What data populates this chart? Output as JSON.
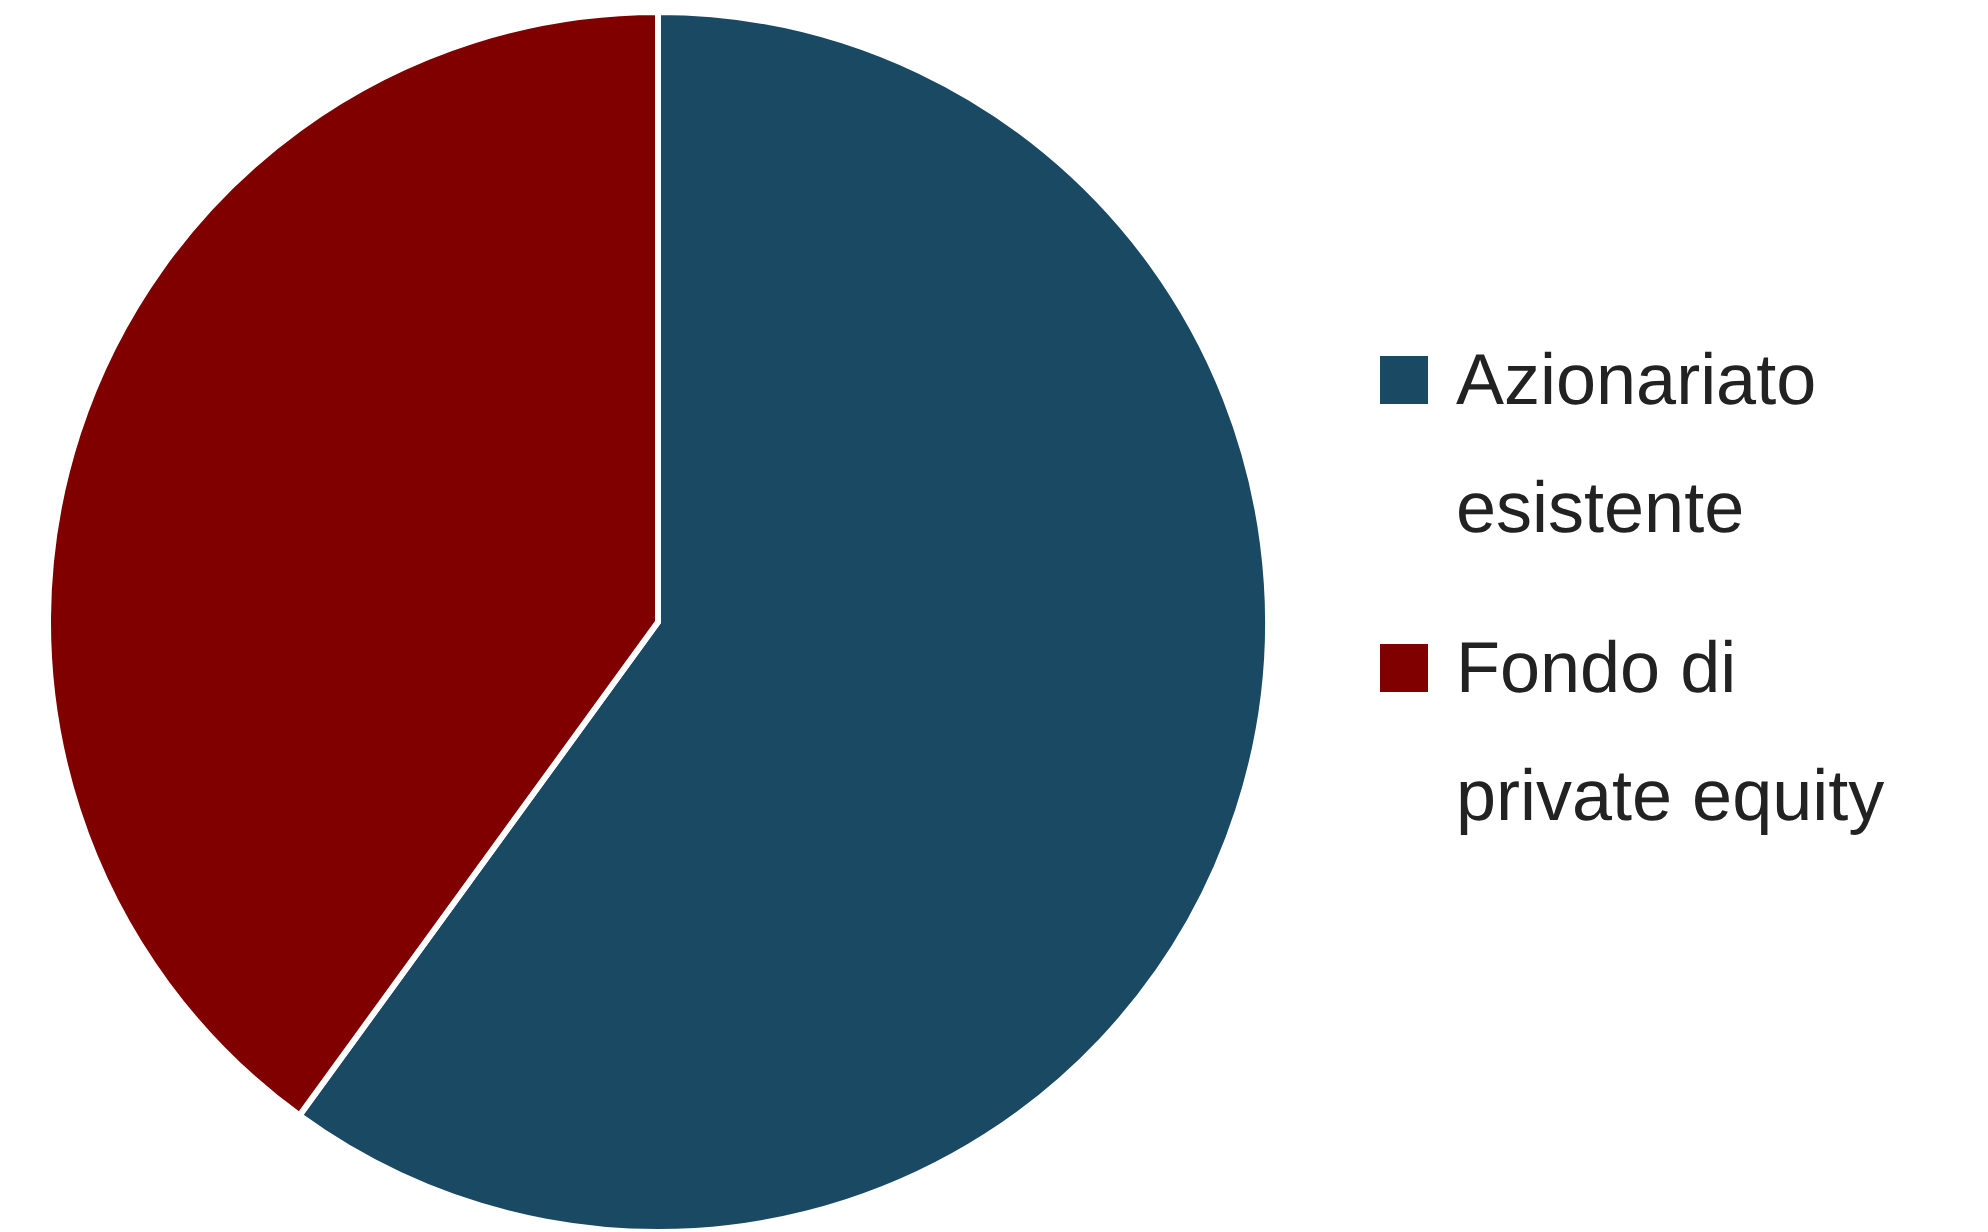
{
  "chart_data": {
    "type": "pie",
    "categories": [
      "Azionariato esistente",
      "Fondo di private equity"
    ],
    "values": [
      60,
      40
    ],
    "colors": [
      "#1a4964",
      "#800000"
    ],
    "legend": "right"
  }
}
